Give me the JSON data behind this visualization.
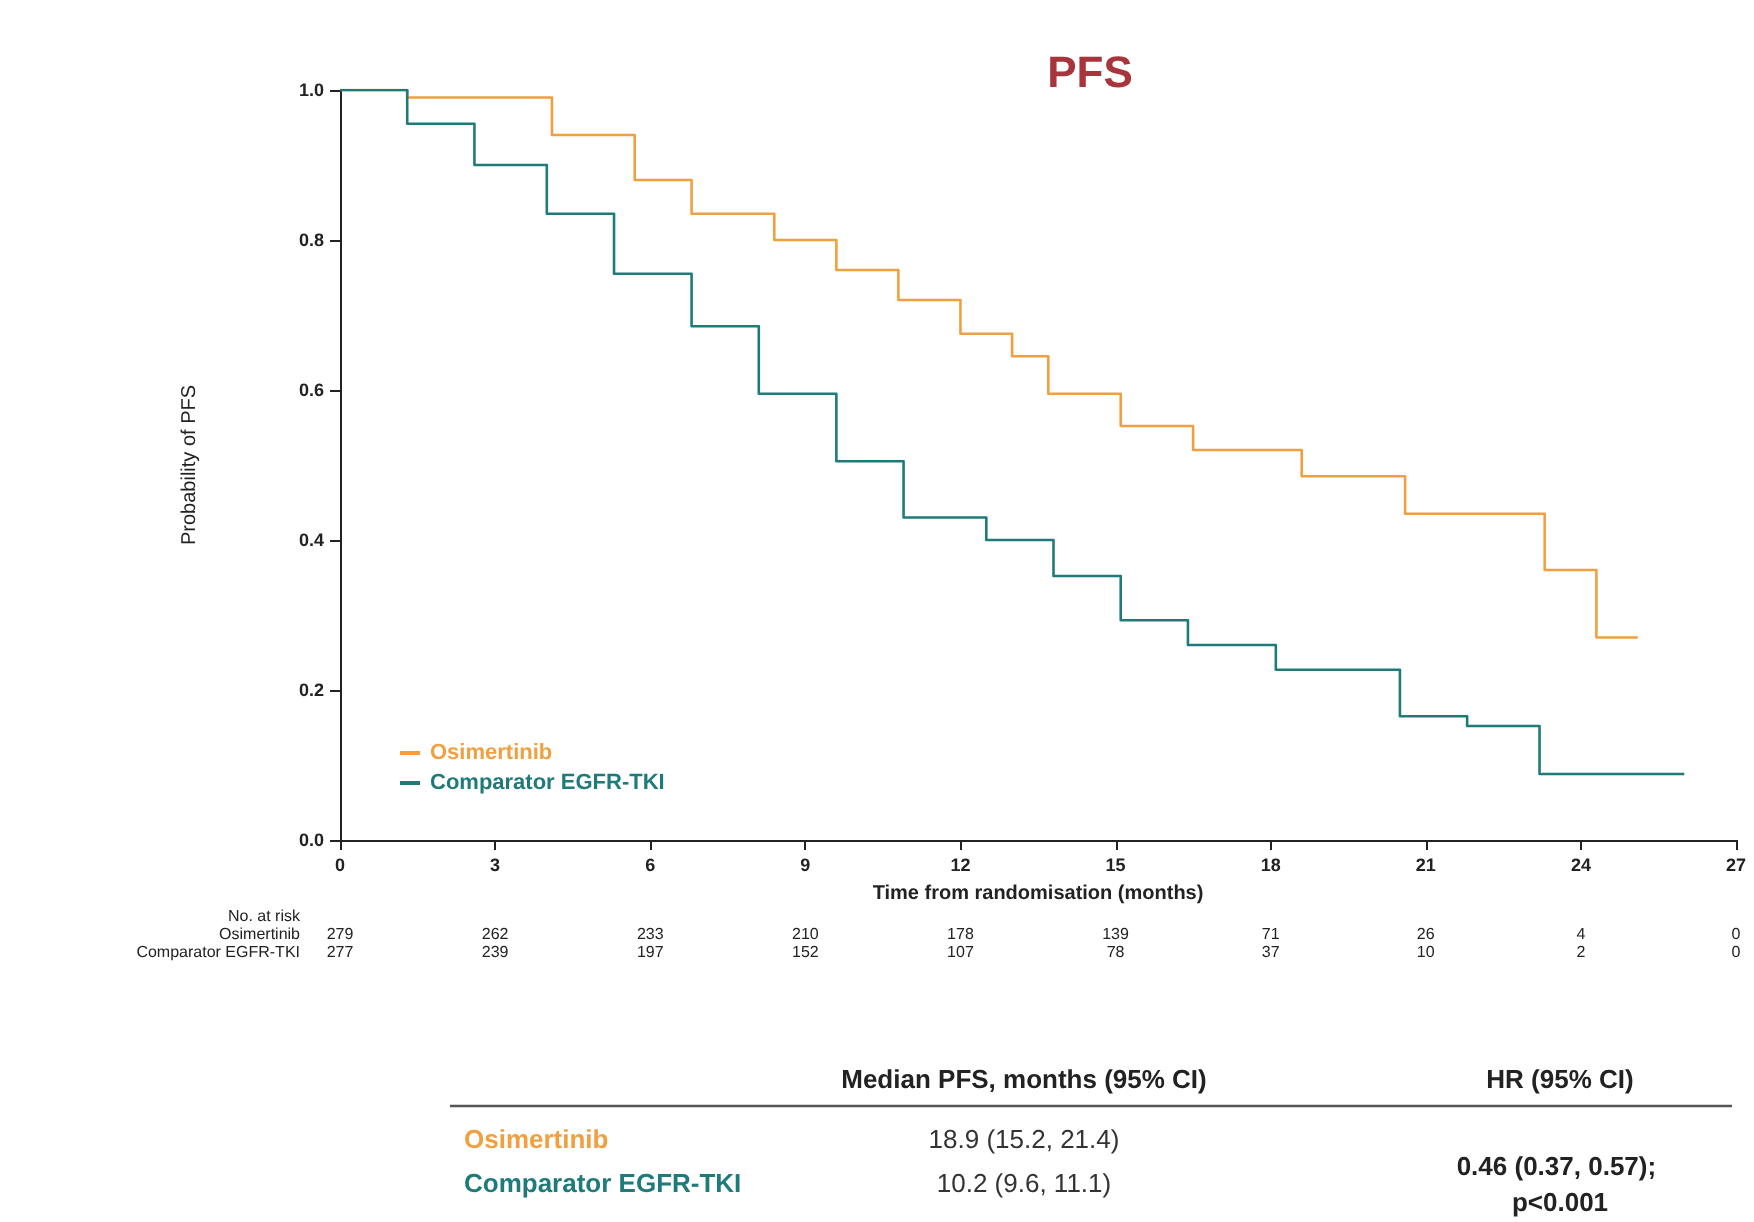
{
  "chart_data": {
    "type": "step",
    "title": "PFS",
    "xlabel": "Time from randomisation (months)",
    "ylabel": "Probability of PFS",
    "xlim": [
      0,
      27
    ],
    "xticks": [
      0,
      3,
      6,
      9,
      12,
      15,
      18,
      21,
      24,
      27
    ],
    "ylim": [
      0,
      1
    ],
    "yticks": [
      {
        "value": 0,
        "label": "0.0"
      },
      {
        "value": 0.2,
        "label": "0.2"
      },
      {
        "value": 0.4,
        "label": "0.4"
      },
      {
        "value": 0.6,
        "label": "0.6"
      },
      {
        "value": 0.8,
        "label": "0.8"
      },
      {
        "value": 1,
        "label": "1.0"
      }
    ],
    "grid": false,
    "legend": "bottom left",
    "marker": "none",
    "line_style": "solid",
    "series": [
      {
        "name": "Osimertinib",
        "color": "#f0a040",
        "x": [
          0,
          1.3,
          4.1,
          5.7,
          6.8,
          8.4,
          9.6,
          10.8,
          12.0,
          13.0,
          13.7,
          15.1,
          16.5,
          18.6,
          20.6,
          23.3,
          24.3,
          25.1
        ],
        "values": [
          1.0,
          0.99,
          0.94,
          0.88,
          0.835,
          0.8,
          0.76,
          0.72,
          0.675,
          0.645,
          0.595,
          0.552,
          0.52,
          0.485,
          0.435,
          0.36,
          0.27,
          0.27
        ]
      },
      {
        "name": "Comparator EGFR-TKI",
        "color": "#1f7a7a",
        "x": [
          0,
          1.3,
          2.6,
          4.0,
          5.3,
          6.8,
          8.1,
          9.6,
          10.9,
          12.5,
          13.8,
          15.1,
          16.4,
          18.1,
          20.5,
          21.8,
          23.2,
          26.0
        ],
        "values": [
          1.0,
          0.955,
          0.9,
          0.835,
          0.755,
          0.685,
          0.595,
          0.505,
          0.43,
          0.4,
          0.352,
          0.293,
          0.26,
          0.227,
          0.165,
          0.152,
          0.088,
          0.088
        ]
      }
    ],
    "annotations": [
      "No. at risk",
      "Osimertinib",
      "279",
      "262",
      "233",
      "210",
      "178",
      "139",
      "71",
      "26",
      "4",
      "0",
      "Comparator EGFR-TKI",
      "277",
      "239",
      "197",
      "152",
      "107",
      "78",
      "37",
      "10",
      "2",
      "0",
      "Median PFS, months (95% CI)",
      "HR (95% CI)",
      "Osimertinib",
      "18.9 (15.2, 21.4)",
      "0.46 (0.37, 0.57); p<0.001",
      "Comparator EGFR-TKI",
      "10.2 (9.6, 11.1)"
    ]
  }
}
